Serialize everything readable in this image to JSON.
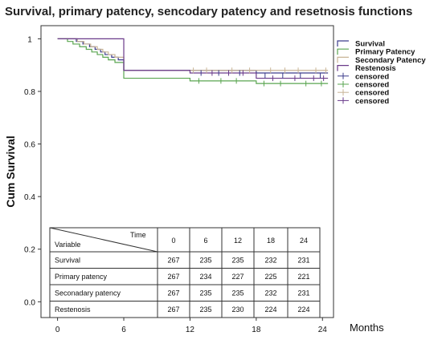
{
  "chart_data": {
    "type": "line",
    "title": "Survival, primary patency, sencodary patency and resetnosis functions",
    "xlabel": "Months",
    "ylabel": "Cum Survival",
    "xlim": [
      -1.5,
      25
    ],
    "ylim": [
      -0.06,
      1.05
    ],
    "xticks": [
      0,
      6,
      12,
      18,
      24
    ],
    "yticks": [
      1,
      0.8,
      0.6,
      0.4,
      0.2,
      0.0
    ],
    "ytick_labels": [
      "1",
      "0.8",
      "0.6",
      "0.4",
      "0.2",
      "0.0"
    ],
    "legend_position": "right",
    "series": [
      {
        "name": "Survival",
        "color": "#3c3c8c",
        "steps": [
          [
            0,
            1.0
          ],
          [
            1.7,
            0.99
          ],
          [
            2.3,
            0.98
          ],
          [
            2.9,
            0.97
          ],
          [
            3.4,
            0.96
          ],
          [
            3.9,
            0.95
          ],
          [
            4.3,
            0.94
          ],
          [
            4.9,
            0.93
          ],
          [
            5.5,
            0.92
          ],
          [
            6,
            0.88
          ],
          [
            18,
            0.87
          ],
          [
            24.5,
            0.87
          ]
        ]
      },
      {
        "name": "Primary Patency",
        "color": "#5aa550",
        "steps": [
          [
            0,
            1.0
          ],
          [
            0.9,
            0.99
          ],
          [
            1.4,
            0.98
          ],
          [
            2.0,
            0.97
          ],
          [
            2.6,
            0.96
          ],
          [
            3.1,
            0.95
          ],
          [
            3.6,
            0.94
          ],
          [
            4.1,
            0.93
          ],
          [
            4.6,
            0.92
          ],
          [
            5.2,
            0.91
          ],
          [
            6,
            0.85
          ],
          [
            12,
            0.84
          ],
          [
            18,
            0.83
          ],
          [
            24.5,
            0.83
          ]
        ]
      },
      {
        "name": "Secondary Patency",
        "color": "#c8b496",
        "steps": [
          [
            0,
            1.0
          ],
          [
            1.8,
            0.99
          ],
          [
            2.4,
            0.98
          ],
          [
            3.0,
            0.97
          ],
          [
            3.6,
            0.96
          ],
          [
            4.1,
            0.95
          ],
          [
            4.6,
            0.94
          ],
          [
            5.2,
            0.93
          ],
          [
            6,
            0.88
          ],
          [
            24.5,
            0.88
          ]
        ]
      },
      {
        "name": "Restenosis",
        "color": "#6a3a8a",
        "steps": [
          [
            0,
            1.0
          ],
          [
            6,
            0.88
          ],
          [
            12,
            0.87
          ],
          [
            18,
            0.85
          ],
          [
            24.5,
            0.85
          ]
        ]
      }
    ],
    "censored_legend": [
      {
        "label": "censored",
        "color": "#3c3c8c"
      },
      {
        "label": "censored",
        "color": "#5aa550"
      },
      {
        "label": "censored",
        "color": "#c8b496"
      },
      {
        "label": "censored",
        "color": "#6a3a8a"
      }
    ],
    "censored_marks": [
      {
        "color": "#c8b496",
        "points": [
          [
            12.3,
            0.88
          ],
          [
            13.5,
            0.88
          ],
          [
            15.8,
            0.88
          ],
          [
            17.4,
            0.88
          ],
          [
            19.3,
            0.88
          ],
          [
            20.6,
            0.88
          ],
          [
            21.8,
            0.88
          ],
          [
            23.4,
            0.88
          ],
          [
            24.3,
            0.88
          ]
        ]
      },
      {
        "color": "#3c3c8c",
        "points": [
          [
            13.0,
            0.87
          ],
          [
            14.6,
            0.87
          ],
          [
            16.5,
            0.87
          ],
          [
            18.8,
            0.86
          ],
          [
            20.4,
            0.86
          ],
          [
            22.0,
            0.86
          ],
          [
            23.8,
            0.86
          ]
        ]
      },
      {
        "color": "#6a3a8a",
        "points": [
          [
            14.0,
            0.87
          ],
          [
            15.5,
            0.87
          ],
          [
            16.8,
            0.87
          ],
          [
            19.5,
            0.85
          ],
          [
            21.5,
            0.85
          ],
          [
            23.2,
            0.85
          ],
          [
            24.1,
            0.85
          ]
        ]
      },
      {
        "color": "#5aa550",
        "points": [
          [
            12.8,
            0.84
          ],
          [
            14.8,
            0.84
          ],
          [
            16.2,
            0.84
          ],
          [
            18.7,
            0.83
          ],
          [
            20.2,
            0.83
          ],
          [
            22.5,
            0.83
          ],
          [
            23.9,
            0.83
          ]
        ]
      }
    ],
    "table": {
      "corner_top": "Time",
      "corner_bottom": "Variable",
      "columns": [
        "0",
        "6",
        "12",
        "18",
        "24"
      ],
      "rows": [
        {
          "label": "Survival",
          "values": [
            "267",
            "235",
            "235",
            "232",
            "231"
          ]
        },
        {
          "label": "Primary patency",
          "values": [
            "267",
            "234",
            "227",
            "225",
            "221"
          ]
        },
        {
          "label": "Seconadary patency",
          "values": [
            "267",
            "235",
            "235",
            "232",
            "231"
          ]
        },
        {
          "label": "Restenosis",
          "values": [
            "267",
            "235",
            "230",
            "224",
            "224"
          ]
        }
      ]
    }
  }
}
